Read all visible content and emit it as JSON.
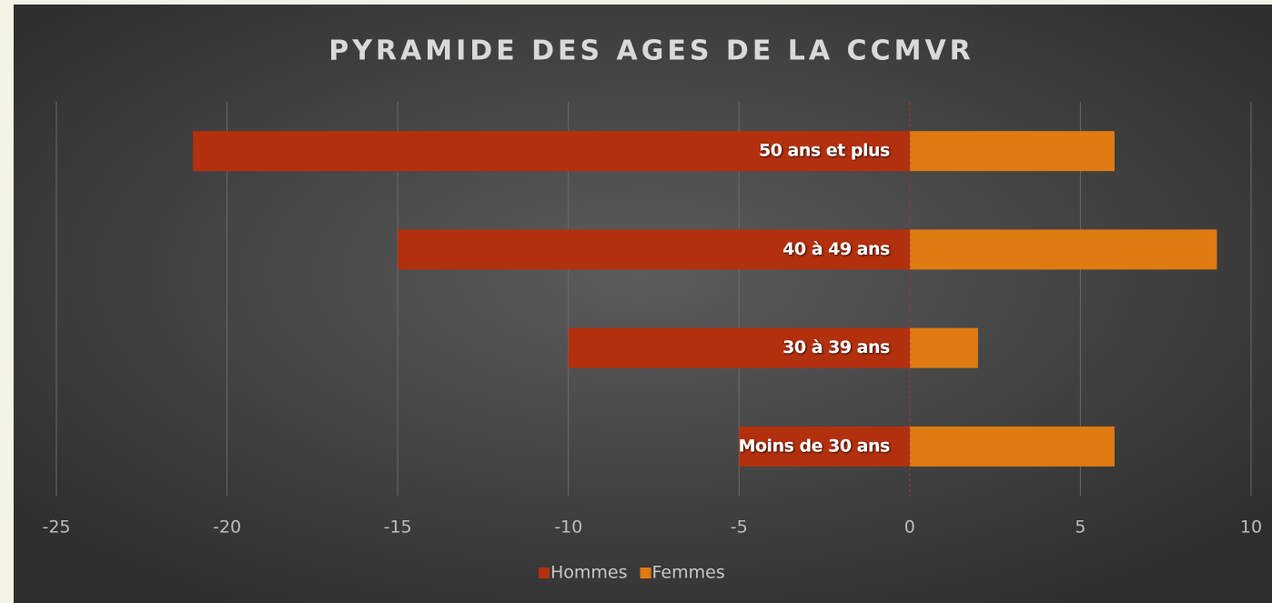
{
  "chart_data": {
    "type": "bar",
    "orientation": "horizontal",
    "title": "PYRAMIDE DES AGES DE LA CCMVR",
    "categories": [
      "50 ans et plus",
      "40 à 49 ans",
      "30 à 39 ans",
      "Moins de 30 ans"
    ],
    "series": [
      {
        "name": "Hommes",
        "color": "#b3300e",
        "values": [
          -21,
          -15,
          -10,
          -5
        ]
      },
      {
        "name": "Femmes",
        "color": "#e07a12",
        "values": [
          6,
          9,
          2,
          6
        ]
      }
    ],
    "xlim": [
      -25,
      10
    ],
    "xticks": [
      -25,
      -20,
      -15,
      -10,
      -5,
      0,
      5,
      10
    ],
    "grid": true,
    "legend": "bottom"
  }
}
